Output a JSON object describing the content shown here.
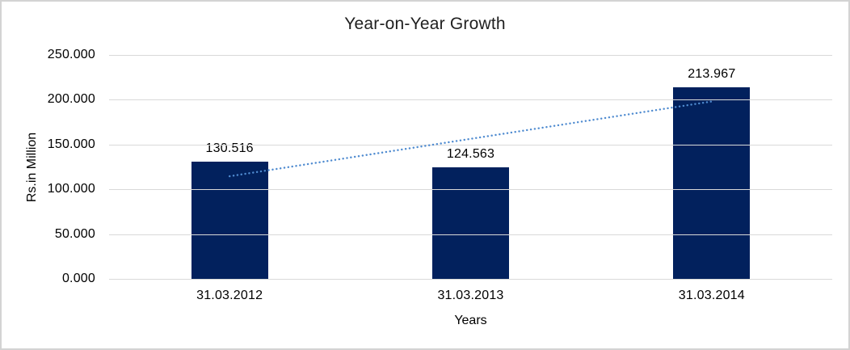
{
  "chart_data": {
    "type": "bar",
    "title": "Year-on-Year Growth",
    "xlabel": "Years",
    "ylabel": "Rs.in Million",
    "categories": [
      "31.03.2012",
      "31.03.2013",
      "31.03.2014"
    ],
    "values": [
      130.516,
      124.563,
      213.967
    ],
    "value_labels": [
      "130.516",
      "124.563",
      "213.967"
    ],
    "ylim": [
      0,
      250
    ],
    "y_ticks": [
      0,
      50,
      100,
      150,
      200,
      250
    ],
    "y_tick_labels": [
      "0.000",
      "50.000",
      "100.000",
      "150.000",
      "200.000",
      "250.000"
    ],
    "grid": true,
    "legend": false,
    "bar_color": "#02215d",
    "gridline_color": "#d9d9d9",
    "axis_line_color": "#d9d9d9",
    "trendline": {
      "type": "linear",
      "style": "dotted",
      "color": "#4f8bd0",
      "start_value": 114.6,
      "end_value": 198.1
    }
  }
}
